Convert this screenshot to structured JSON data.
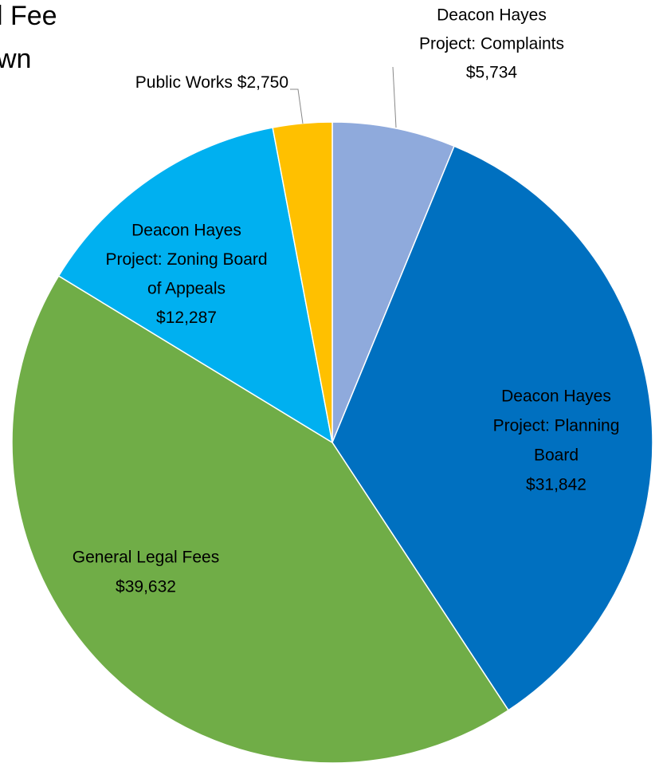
{
  "chart_data": {
    "type": "pie",
    "title": [
      "l Fee",
      "wn"
    ],
    "categories": [
      [
        "Deacon Hayes",
        "Project: Complaints"
      ],
      [
        "Deacon Hayes",
        "Project: Planning",
        "Board"
      ],
      [
        "General Legal Fees"
      ],
      [
        "Deacon Hayes",
        "Project: Zoning Board",
        "of Appeals"
      ],
      [
        "Public Works"
      ]
    ],
    "values": [
      5734,
      31842,
      39632,
      12287,
      2750
    ],
    "value_labels": [
      "$5,734",
      "$31,842",
      "$39,632",
      "$12,287",
      "$2,750"
    ],
    "colors": [
      "#8faadc",
      "#0070c0",
      "#70ad47",
      "#00b0f0",
      "#ffc000"
    ]
  }
}
